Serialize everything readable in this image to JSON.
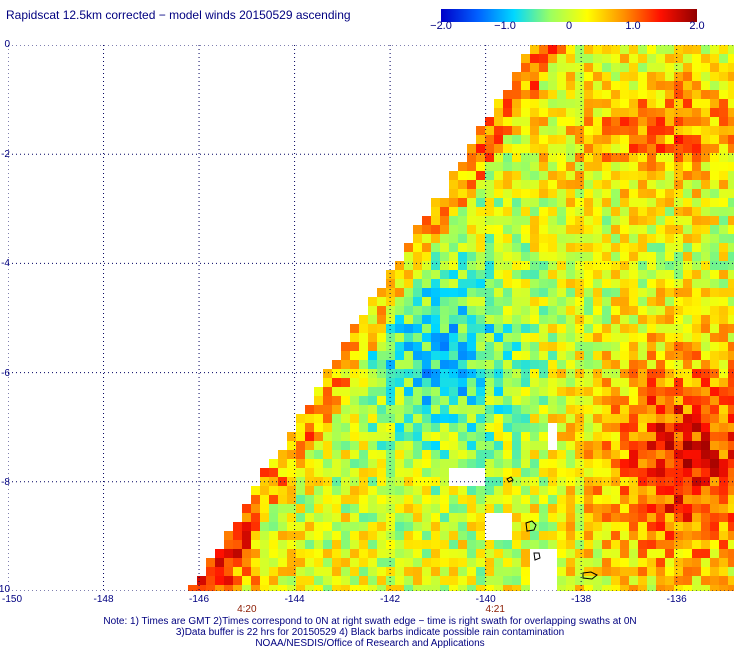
{
  "title": "Rapidscat 12.5km corrected − model winds 20150529 ascending",
  "colorbar": {
    "ticks": [
      {
        "label": "−2.0",
        "value": -2.0
      },
      {
        "label": "−1.0",
        "value": -1.0
      },
      {
        "label": "0",
        "value": 0
      },
      {
        "label": "1.0",
        "value": 1.0
      },
      {
        "label": "2.0",
        "value": 2.0
      }
    ],
    "range": [
      -2.0,
      2.0
    ],
    "colors": [
      "#0000c8",
      "#0060ff",
      "#00d8ff",
      "#9cff60",
      "#ffff00",
      "#ff9000",
      "#ff1000",
      "#900000"
    ]
  },
  "axes": {
    "lon_range": [
      -150,
      -134.8
    ],
    "lat_range": [
      -10,
      0
    ],
    "x_ticks": [
      {
        "label": "-150",
        "value": -150
      },
      {
        "label": "-148",
        "value": -148
      },
      {
        "label": "-146",
        "value": -146
      },
      {
        "label": "-144",
        "value": -144
      },
      {
        "label": "-142",
        "value": -142
      },
      {
        "label": "-140",
        "value": -140
      },
      {
        "label": "-138",
        "value": -138
      },
      {
        "label": "-136",
        "value": -136
      }
    ],
    "y_ticks": [
      {
        "label": "0",
        "value": 0
      },
      {
        "label": "-2",
        "value": -2
      },
      {
        "label": "-4",
        "value": -4
      },
      {
        "label": "-6",
        "value": -6
      },
      {
        "label": "-8",
        "value": -8
      },
      {
        "label": "-10",
        "value": -10
      }
    ],
    "gridlines": true
  },
  "swath_times": [
    {
      "label": "4:20",
      "lon": -145
    },
    {
      "label": "4:21",
      "lon": -139.8
    }
  ],
  "notes": [
    "Note: 1) Times are GMT 2)Times correspond to 0N at right swath edge − time is right swath for overlapping swaths at 0N",
    "3)Data buffer is 22 hrs for 20150529 4) Black barbs indicate possible rain contamination",
    "NOAA/NESDIS/Office of Research and Applications"
  ]
}
